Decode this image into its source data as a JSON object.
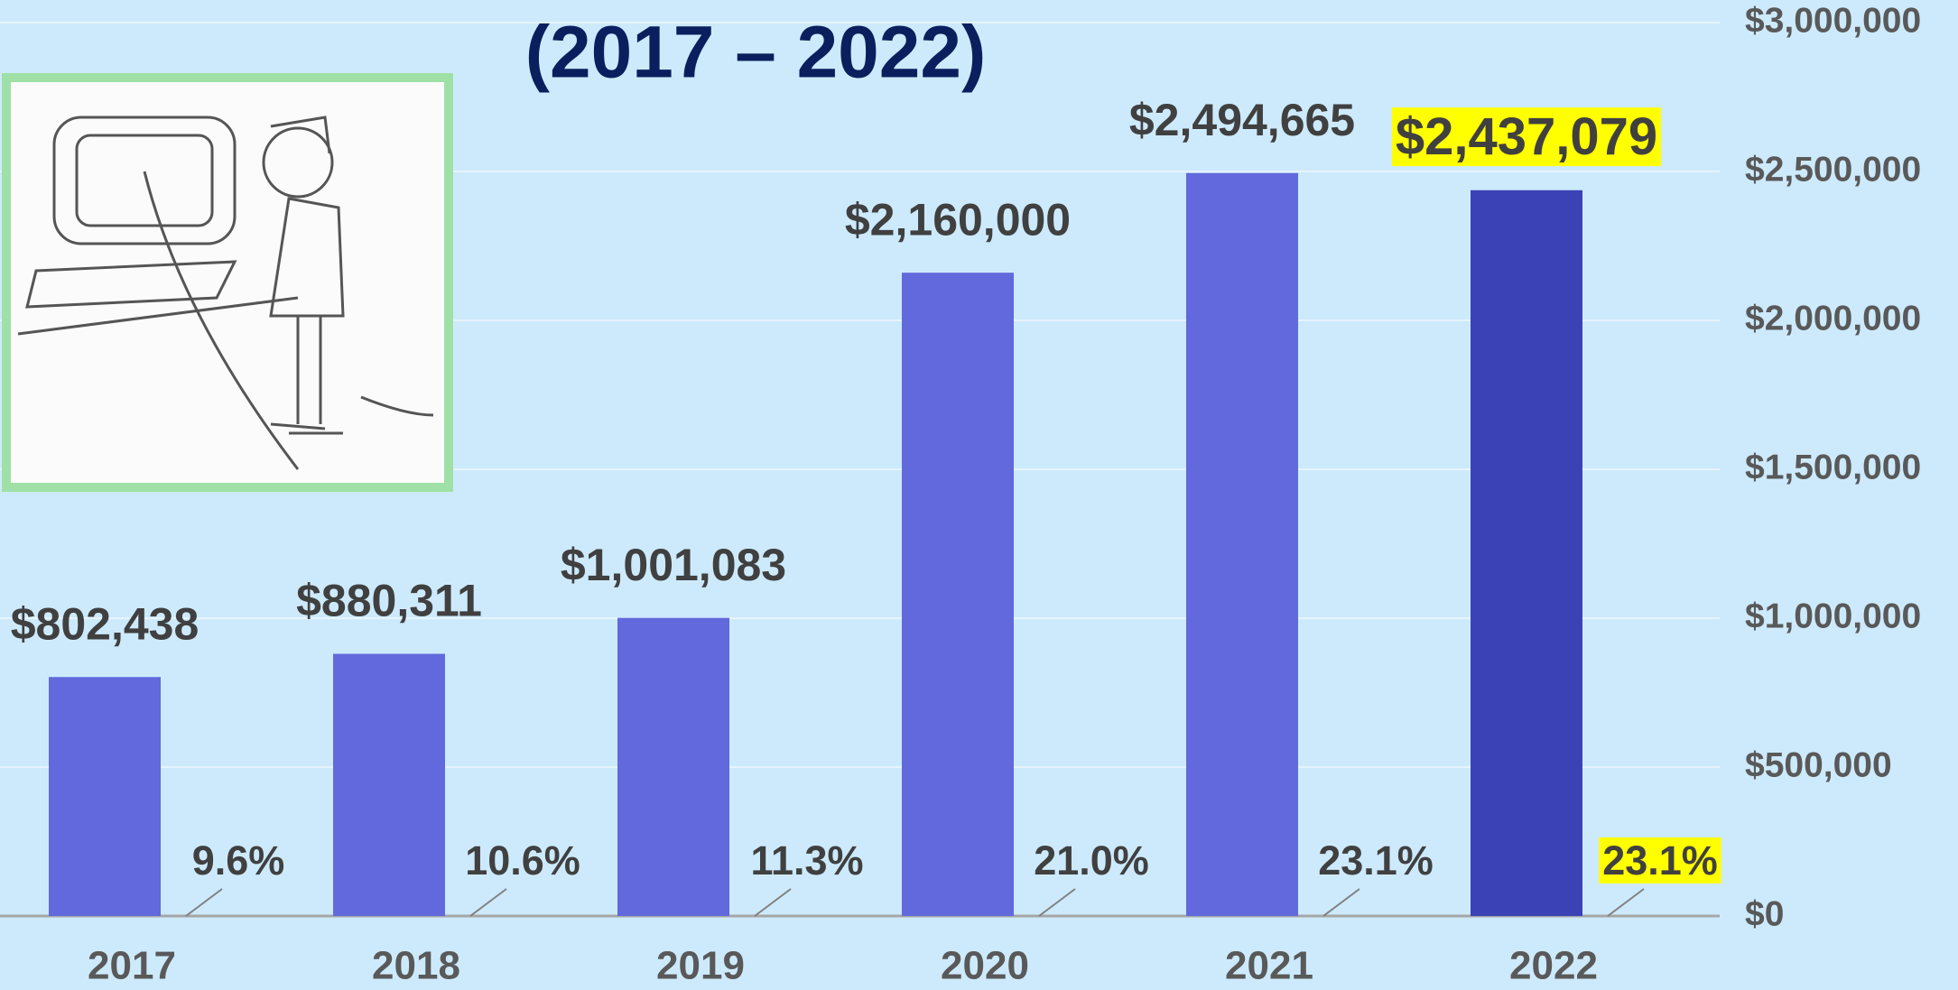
{
  "chart_data": {
    "type": "bar",
    "title": "(2017 – 2022)",
    "categories": [
      "2017",
      "2018",
      "2019",
      "2020",
      "2021",
      "2022"
    ],
    "values": [
      802438,
      880311,
      1001083,
      2160000,
      2494665,
      2437079
    ],
    "value_labels": [
      "$802,438",
      "$880,311",
      "$1,001,083",
      "$2,160,000",
      "$2,494,665",
      "$2,437,079"
    ],
    "colors": [
      "#6169dc",
      "#6169dc",
      "#6169dc",
      "#6169dc",
      "#6169dc",
      "#3b42b6"
    ],
    "label_backgrounds": [
      null,
      null,
      null,
      null,
      null,
      "#ffff00"
    ],
    "percent_values": [
      9.6,
      10.6,
      11.3,
      21.0,
      23.1,
      23.1
    ],
    "percent_labels": [
      "9.6%",
      "10.6%",
      "11.3%",
      "21.0%",
      "23.1%",
      "23.1%"
    ],
    "ylim": [
      0,
      3000000
    ],
    "yticks": [
      {
        "value": 0,
        "label": "$0"
      },
      {
        "value": 500000,
        "label": "$500,000"
      },
      {
        "value": 1000000,
        "label": "$1,000,000"
      },
      {
        "value": 1500000,
        "label": "$1,500,000"
      },
      {
        "value": 2000000,
        "label": "$2,000,000"
      },
      {
        "value": 2500000,
        "label": "$2,500,000"
      },
      {
        "value": 3000000,
        "label": "$3,000,000"
      }
    ],
    "grid": true
  }
}
